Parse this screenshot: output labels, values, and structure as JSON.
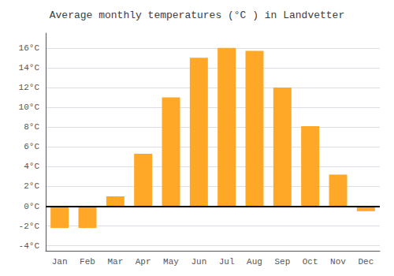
{
  "chart_data": {
    "type": "bar",
    "title": "Average monthly temperatures (°C ) in Landvetter",
    "categories": [
      "Jan",
      "Feb",
      "Mar",
      "Apr",
      "May",
      "Jun",
      "Jul",
      "Aug",
      "Sep",
      "Oct",
      "Nov",
      "Dec"
    ],
    "values": [
      -2.2,
      -2.2,
      1.0,
      5.3,
      11.0,
      15.0,
      16.0,
      15.7,
      12.0,
      8.1,
      3.2,
      -0.5
    ],
    "color": "#FFA726",
    "ylim": [
      -4.5,
      17.5
    ],
    "yticks": [
      {
        "value": -4,
        "label": "-4°C"
      },
      {
        "value": -2,
        "label": "-2°C"
      },
      {
        "value": 0,
        "label": "0°C"
      },
      {
        "value": 2,
        "label": "2°C"
      },
      {
        "value": 4,
        "label": "4°C"
      },
      {
        "value": 6,
        "label": "6°C"
      },
      {
        "value": 8,
        "label": "8°C"
      },
      {
        "value": 10,
        "label": "10°C"
      },
      {
        "value": 12,
        "label": "12°C"
      },
      {
        "value": 14,
        "label": "14°C"
      },
      {
        "value": 16,
        "label": "16°C"
      }
    ],
    "grid": true
  }
}
